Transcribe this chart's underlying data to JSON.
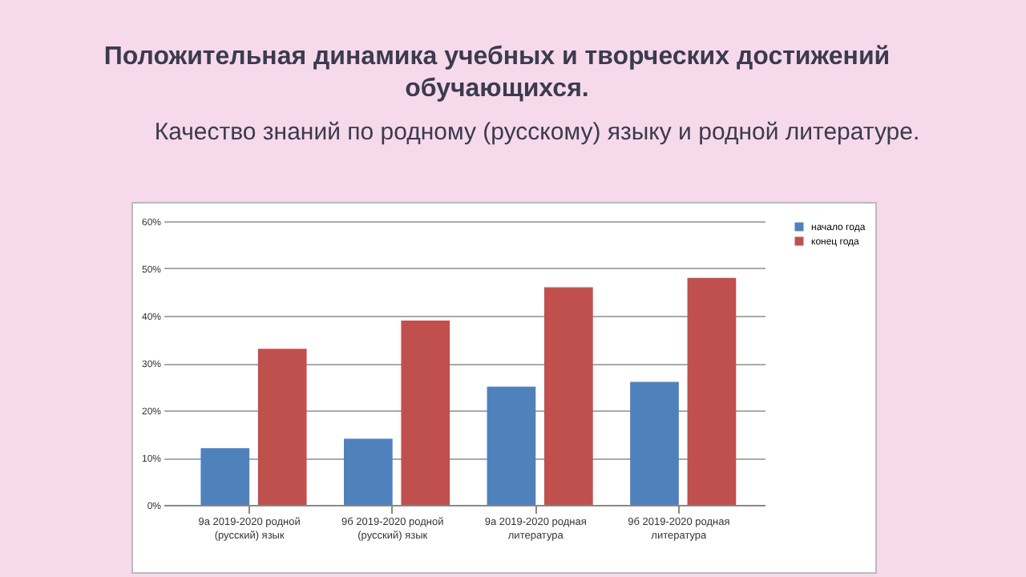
{
  "chart_data": {
    "type": "bar",
    "title": "Положительная динамика учебных и творческих достижений обучающихся.",
    "subtitle": "Качество знаний по родному (русскому) языку и родной литературе.",
    "categories": [
      "9а 2019-2020 родной (русский) язык",
      "9б 2019-2020 родной (русский) язык",
      "9а 2019-2020 родная литература",
      "9б 2019-2020 родная литература"
    ],
    "series": [
      {
        "name": "начало года",
        "color": "#4f81bd",
        "values": [
          12,
          14,
          25,
          26
        ]
      },
      {
        "name": "конец года",
        "color": "#c0504d",
        "values": [
          33,
          39,
          46,
          48
        ]
      }
    ],
    "ylim": [
      0,
      60
    ],
    "yticks": [
      {
        "value": 0,
        "label": "0%"
      },
      {
        "value": 10,
        "label": "10%"
      },
      {
        "value": 20,
        "label": "20%"
      },
      {
        "value": 30,
        "label": "30%"
      },
      {
        "value": 40,
        "label": "40%"
      },
      {
        "value": 50,
        "label": "50%"
      },
      {
        "value": 60,
        "label": "60%"
      }
    ],
    "grid": "y",
    "legend": "right"
  }
}
